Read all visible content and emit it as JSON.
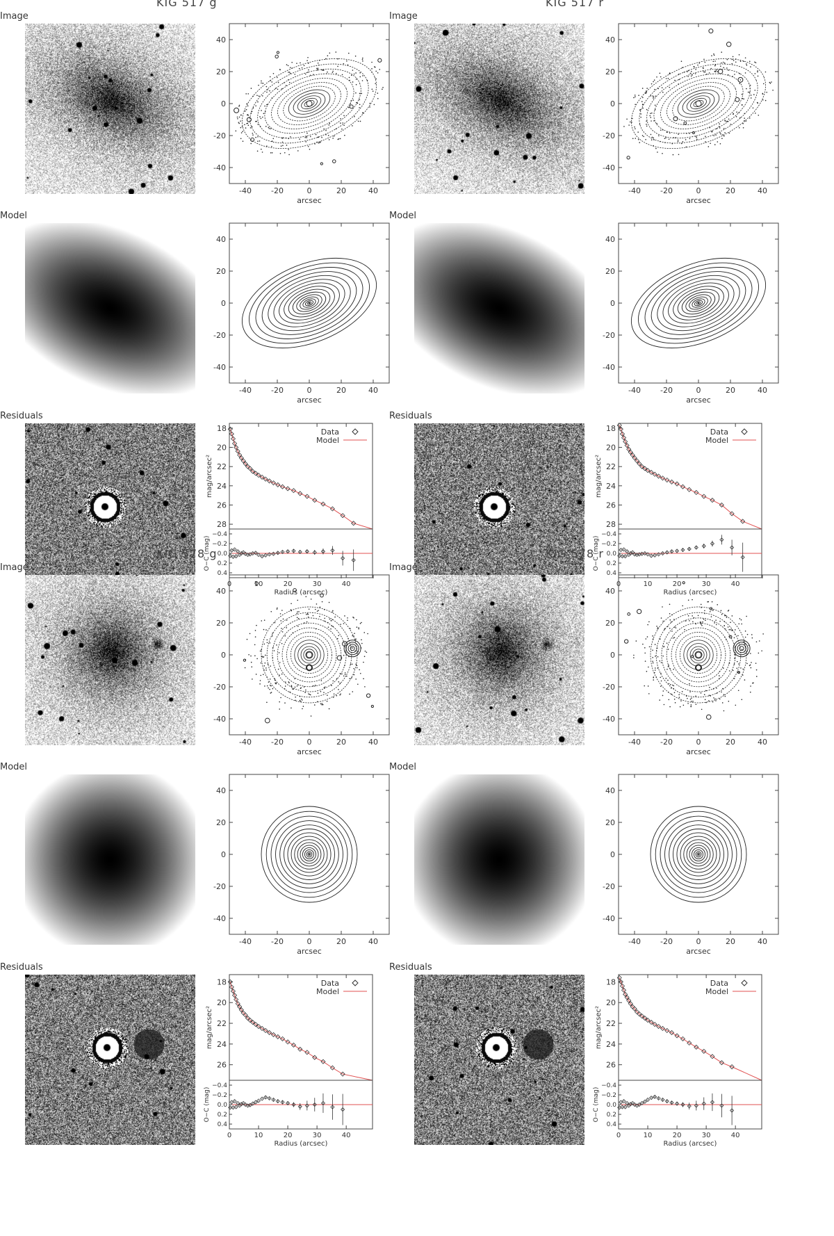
{
  "row_labels": {
    "image": "Image",
    "model": "Model",
    "residuals": "Residuals"
  },
  "panels": [
    {
      "title": "KIG 517 g",
      "shape": "elliptical",
      "companion": false
    },
    {
      "title": "KIG 517 r",
      "shape": "elliptical",
      "companion": false
    },
    {
      "title": "KIG 578 g",
      "shape": "round",
      "companion": true
    },
    {
      "title": "KIG 578 r",
      "shape": "round",
      "companion": true
    }
  ],
  "contour_axes": {
    "xlabel": "arcsec",
    "xticks": [
      -40,
      -20,
      0,
      20,
      40
    ],
    "yticks": [
      -40,
      -20,
      0,
      20,
      40
    ],
    "range": [
      -50,
      50
    ]
  },
  "profile_axes": {
    "ylabel": "mag/arcsec²",
    "residual_ylabel": "O−C (mag)",
    "xlabel": "Radius (arcsec)",
    "xticks": [
      0,
      10,
      20,
      30,
      40
    ],
    "residual_yticks": [
      "−0.4",
      "−0.2",
      "0.0",
      "0.2",
      "0.4"
    ],
    "legend": {
      "data": "Data",
      "model": "Model"
    }
  },
  "colors": {
    "model_line": "#e05050",
    "contour": "#222222"
  },
  "chart_data": [
    {
      "type": "scatter",
      "title": "KIG 517 g",
      "xlabel": "Radius (arcsec)",
      "ylabel": "mag/arcsec²",
      "xlim": [
        0,
        49
      ],
      "ylim": [
        28.5,
        17.5
      ],
      "yticks": [
        18,
        20,
        22,
        24,
        26,
        28
      ],
      "x": [
        0.3,
        0.8,
        1.3,
        1.8,
        2.3,
        2.9,
        3.5,
        4.1,
        4.8,
        5.5,
        6.3,
        7.1,
        8.0,
        9.0,
        10.0,
        11.2,
        12.4,
        13.7,
        15.1,
        16.6,
        18.2,
        20.0,
        22.0,
        24.2,
        26.6,
        29.2,
        32.1,
        35.3,
        38.8,
        42.5
      ],
      "y": [
        18.1,
        18.6,
        19.1,
        19.6,
        20.0,
        20.4,
        20.8,
        21.1,
        21.4,
        21.7,
        22.0,
        22.2,
        22.5,
        22.7,
        22.9,
        23.1,
        23.3,
        23.5,
        23.7,
        23.9,
        24.1,
        24.3,
        24.5,
        24.8,
        25.1,
        25.5,
        25.9,
        26.4,
        27.1,
        27.9
      ],
      "series": [
        {
          "name": "Data"
        },
        {
          "name": "Model"
        }
      ],
      "residuals": {
        "ylim": [
          0.5,
          -0.5
        ],
        "y": [
          0.05,
          -0.06,
          0.07,
          -0.08,
          0.06,
          -0.04,
          0.03,
          0.0,
          -0.02,
          0.01,
          0.03,
          0.02,
          0.0,
          -0.01,
          0.03,
          0.06,
          0.04,
          0.02,
          0.01,
          -0.01,
          -0.03,
          -0.04,
          -0.05,
          -0.03,
          -0.04,
          -0.02,
          -0.04,
          -0.06,
          0.1,
          0.14
        ],
        "err": [
          0.01,
          0.01,
          0.01,
          0.01,
          0.01,
          0.01,
          0.01,
          0.01,
          0.01,
          0.01,
          0.01,
          0.01,
          0.01,
          0.01,
          0.01,
          0.01,
          0.01,
          0.01,
          0.01,
          0.02,
          0.02,
          0.02,
          0.03,
          0.03,
          0.04,
          0.05,
          0.06,
          0.09,
          0.15,
          0.22
        ]
      }
    },
    {
      "type": "scatter",
      "title": "KIG 517 r",
      "xlabel": "Radius (arcsec)",
      "ylabel": "mag/arcsec²",
      "xlim": [
        0,
        49
      ],
      "ylim": [
        28.5,
        17.5
      ],
      "yticks": [
        18,
        20,
        22,
        24,
        26,
        28
      ],
      "x": [
        0.3,
        0.8,
        1.3,
        1.8,
        2.3,
        2.9,
        3.5,
        4.1,
        4.8,
        5.5,
        6.3,
        7.1,
        8.0,
        9.0,
        10.0,
        11.2,
        12.4,
        13.7,
        15.1,
        16.6,
        18.2,
        20.0,
        22.0,
        24.2,
        26.6,
        29.2,
        32.1,
        35.3,
        38.8,
        42.5
      ],
      "y": [
        17.7,
        18.1,
        18.6,
        19.0,
        19.4,
        19.8,
        20.2,
        20.5,
        20.8,
        21.1,
        21.4,
        21.7,
        22.0,
        22.2,
        22.4,
        22.6,
        22.8,
        23.0,
        23.2,
        23.4,
        23.6,
        23.8,
        24.1,
        24.4,
        24.7,
        25.1,
        25.5,
        26.0,
        26.9,
        27.7
      ],
      "series": [
        {
          "name": "Data"
        },
        {
          "name": "Model"
        }
      ],
      "residuals": {
        "ylim": [
          0.5,
          -0.5
        ],
        "y": [
          0.05,
          -0.07,
          0.06,
          -0.08,
          0.06,
          -0.04,
          0.03,
          0.0,
          -0.02,
          0.02,
          0.03,
          0.02,
          0.01,
          0.0,
          0.02,
          0.05,
          0.04,
          0.02,
          0.0,
          -0.02,
          -0.04,
          -0.05,
          -0.07,
          -0.09,
          -0.12,
          -0.15,
          -0.2,
          -0.28,
          -0.12,
          0.08
        ],
        "err": [
          0.01,
          0.01,
          0.01,
          0.01,
          0.01,
          0.01,
          0.01,
          0.01,
          0.01,
          0.01,
          0.01,
          0.01,
          0.01,
          0.01,
          0.01,
          0.01,
          0.01,
          0.01,
          0.01,
          0.02,
          0.02,
          0.02,
          0.03,
          0.03,
          0.04,
          0.05,
          0.06,
          0.1,
          0.16,
          0.3
        ]
      }
    },
    {
      "type": "scatter",
      "title": "KIG 578 g",
      "xlabel": "Radius (arcsec)",
      "ylabel": "mag/arcsec²",
      "xlim": [
        0,
        49
      ],
      "ylim": [
        27.5,
        17.3
      ],
      "yticks": [
        18,
        20,
        22,
        24,
        26
      ],
      "x": [
        0.3,
        0.8,
        1.3,
        1.8,
        2.3,
        2.9,
        3.5,
        4.1,
        4.8,
        5.5,
        6.3,
        7.1,
        8.0,
        9.0,
        10.0,
        11.2,
        12.4,
        13.7,
        15.1,
        16.6,
        18.2,
        20.0,
        22.0,
        24.2,
        26.6,
        29.2,
        32.1,
        35.3,
        38.8
      ],
      "y": [
        18.0,
        18.5,
        18.9,
        19.3,
        19.7,
        20.1,
        20.4,
        20.7,
        21.0,
        21.2,
        21.5,
        21.7,
        21.9,
        22.1,
        22.3,
        22.5,
        22.7,
        22.9,
        23.1,
        23.3,
        23.5,
        23.8,
        24.1,
        24.5,
        24.8,
        25.3,
        25.7,
        26.3,
        26.9
      ],
      "series": [
        {
          "name": "Data"
        },
        {
          "name": "Model"
        }
      ],
      "residuals": {
        "ylim": [
          0.5,
          -0.5
        ],
        "y": [
          0.06,
          -0.05,
          0.06,
          -0.07,
          0.05,
          -0.03,
          0.02,
          -0.01,
          -0.03,
          0.0,
          0.02,
          0.01,
          -0.02,
          -0.05,
          -0.08,
          -0.12,
          -0.15,
          -0.13,
          -0.1,
          -0.07,
          -0.05,
          -0.03,
          0.0,
          0.04,
          0.02,
          0.0,
          -0.03,
          0.05,
          0.1
        ],
        "err": [
          0.01,
          0.01,
          0.01,
          0.01,
          0.01,
          0.01,
          0.01,
          0.01,
          0.01,
          0.01,
          0.01,
          0.01,
          0.01,
          0.01,
          0.01,
          0.01,
          0.02,
          0.02,
          0.02,
          0.03,
          0.03,
          0.04,
          0.05,
          0.07,
          0.1,
          0.14,
          0.2,
          0.26,
          0.32
        ]
      }
    },
    {
      "type": "scatter",
      "title": "KIG 578 r",
      "xlabel": "Radius (arcsec)",
      "ylabel": "mag/arcsec²",
      "xlim": [
        0,
        49
      ],
      "ylim": [
        27.5,
        17.3
      ],
      "yticks": [
        18,
        20,
        22,
        24,
        26
      ],
      "x": [
        0.3,
        0.8,
        1.3,
        1.8,
        2.3,
        2.9,
        3.5,
        4.1,
        4.8,
        5.5,
        6.3,
        7.1,
        8.0,
        9.0,
        10.0,
        11.2,
        12.4,
        13.7,
        15.1,
        16.6,
        18.2,
        20.0,
        22.0,
        24.2,
        26.6,
        29.2,
        32.1,
        35.3,
        38.8
      ],
      "y": [
        17.6,
        18.0,
        18.4,
        18.8,
        19.2,
        19.5,
        19.8,
        20.1,
        20.4,
        20.6,
        20.9,
        21.1,
        21.3,
        21.5,
        21.7,
        21.9,
        22.1,
        22.3,
        22.5,
        22.7,
        22.9,
        23.2,
        23.5,
        23.9,
        24.3,
        24.7,
        25.2,
        25.8,
        26.2
      ],
      "series": [
        {
          "name": "Data"
        },
        {
          "name": "Model"
        }
      ],
      "residuals": {
        "ylim": [
          0.5,
          -0.5
        ],
        "y": [
          0.06,
          -0.05,
          0.05,
          -0.07,
          0.05,
          -0.03,
          0.02,
          -0.01,
          -0.03,
          0.0,
          0.02,
          0.0,
          -0.03,
          -0.06,
          -0.1,
          -0.14,
          -0.16,
          -0.13,
          -0.1,
          -0.07,
          -0.04,
          -0.02,
          0.0,
          0.03,
          0.02,
          -0.02,
          -0.05,
          0.02,
          0.12
        ],
        "err": [
          0.01,
          0.01,
          0.01,
          0.01,
          0.01,
          0.01,
          0.01,
          0.01,
          0.01,
          0.01,
          0.01,
          0.01,
          0.01,
          0.01,
          0.01,
          0.01,
          0.02,
          0.02,
          0.02,
          0.03,
          0.03,
          0.04,
          0.05,
          0.07,
          0.1,
          0.13,
          0.18,
          0.24,
          0.3
        ]
      }
    }
  ]
}
